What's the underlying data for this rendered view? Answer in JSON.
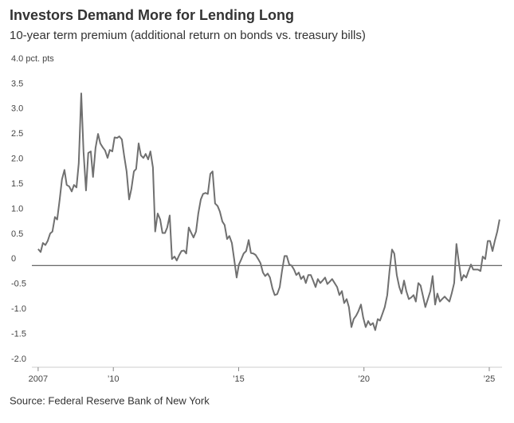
{
  "chart_data": {
    "type": "line",
    "title": "Investors Demand More for Lending Long",
    "subtitle": "10-year term premium (additional return on bonds vs. treasury bills)",
    "source": "Source: Federal Reserve Bank of New York",
    "xlim": [
      2006.75,
      2025.51
    ],
    "xticks": [
      {
        "value": 2007,
        "label": "2007"
      },
      {
        "value": 2010,
        "label": "’10"
      },
      {
        "value": 2015,
        "label": "’15"
      },
      {
        "value": 2020,
        "label": "’20"
      },
      {
        "value": 2025,
        "label": "’25"
      }
    ],
    "ylim": [
      -2,
      4
    ],
    "yticks": [
      {
        "value": 4,
        "label": "4.0 pct. pts"
      },
      3.5,
      {
        "value": 3,
        "label": "3.0"
      },
      2.5,
      {
        "value": 2,
        "label": "2.0"
      },
      1.5,
      {
        "value": 1,
        "label": "1.0"
      },
      0.5,
      0,
      -0.5,
      {
        "value": -1,
        "label": "-1.0"
      },
      -1.5,
      {
        "value": -2,
        "label": "-2.0"
      }
    ],
    "grid": false,
    "series": [
      {
        "name": "10-year term premium",
        "color": "#707070",
        "x": [
          2007,
          2007.1,
          2007.19,
          2007.29,
          2007.38,
          2007.48,
          2007.57,
          2007.67,
          2007.76,
          2007.86,
          2007.95,
          2008.05,
          2008.14,
          2008.24,
          2008.34,
          2008.43,
          2008.53,
          2008.62,
          2008.72,
          2008.81,
          2008.91,
          2009.0,
          2009.1,
          2009.19,
          2009.29,
          2009.39,
          2009.48,
          2009.58,
          2009.67,
          2009.77,
          2009.86,
          2009.96,
          2010.05,
          2010.15,
          2010.24,
          2010.34,
          2010.43,
          2010.53,
          2010.63,
          2010.72,
          2010.82,
          2010.91,
          2011.01,
          2011.1,
          2011.2,
          2011.29,
          2011.39,
          2011.48,
          2011.58,
          2011.67,
          2011.77,
          2011.87,
          2011.96,
          2012.06,
          2012.15,
          2012.25,
          2012.34,
          2012.44,
          2012.53,
          2012.63,
          2012.72,
          2012.82,
          2012.91,
          2013.01,
          2013.11,
          2013.2,
          2013.3,
          2013.39,
          2013.49,
          2013.58,
          2013.68,
          2013.77,
          2013.87,
          2013.96,
          2014.06,
          2014.16,
          2014.25,
          2014.35,
          2014.44,
          2014.54,
          2014.63,
          2014.73,
          2014.82,
          2014.92,
          2015.01,
          2015.11,
          2015.2,
          2015.3,
          2015.4,
          2015.49,
          2015.59,
          2015.68,
          2015.78,
          2015.87,
          2015.97,
          2016.06,
          2016.16,
          2016.25,
          2016.35,
          2016.44,
          2016.54,
          2016.64,
          2016.73,
          2016.83,
          2016.92,
          2017.02,
          2017.11,
          2017.21,
          2017.3,
          2017.4,
          2017.49,
          2017.59,
          2017.68,
          2017.78,
          2017.88,
          2017.97,
          2018.07,
          2018.16,
          2018.26,
          2018.35,
          2018.45,
          2018.54,
          2018.64,
          2018.73,
          2018.83,
          2018.93,
          2019.02,
          2019.12,
          2019.21,
          2019.31,
          2019.4,
          2019.5,
          2019.59,
          2019.69,
          2019.78,
          2019.88,
          2019.97,
          2020.07,
          2020.17,
          2020.26,
          2020.36,
          2020.45,
          2020.55,
          2020.64,
          2020.74,
          2020.83,
          2020.93,
          2021.02,
          2021.12,
          2021.21,
          2021.31,
          2021.41,
          2021.5,
          2021.6,
          2021.69,
          2021.79,
          2021.88,
          2021.98,
          2022.07,
          2022.17,
          2022.26,
          2022.36,
          2022.45,
          2022.55,
          2022.65,
          2022.74,
          2022.84,
          2022.93,
          2023.03,
          2023.12,
          2023.22,
          2023.31,
          2023.41,
          2023.5,
          2023.6,
          2023.69,
          2023.79,
          2023.89,
          2023.98,
          2024.08,
          2024.17,
          2024.27,
          2024.36,
          2024.46,
          2024.55,
          2024.65,
          2024.74,
          2024.84,
          2024.94,
          2025.03,
          2025.13,
          2025.22,
          2025.32,
          2025.41
        ],
        "values": [
          0.33,
          0.27,
          0.45,
          0.41,
          0.49,
          0.64,
          0.68,
          0.97,
          0.92,
          1.32,
          1.72,
          1.91,
          1.61,
          1.58,
          1.48,
          1.61,
          1.56,
          2.04,
          3.44,
          2.28,
          1.5,
          2.25,
          2.28,
          1.77,
          2.35,
          2.63,
          2.44,
          2.36,
          2.3,
          2.15,
          2.31,
          2.28,
          2.56,
          2.55,
          2.58,
          2.52,
          2.2,
          1.88,
          1.32,
          1.53,
          1.88,
          1.93,
          2.44,
          2.2,
          2.15,
          2.23,
          2.12,
          2.28,
          1.96,
          0.68,
          1.04,
          0.92,
          0.65,
          0.65,
          0.76,
          1.0,
          0.13,
          0.18,
          0.1,
          0.21,
          0.29,
          0.3,
          0.24,
          0.76,
          0.65,
          0.56,
          0.68,
          1.04,
          1.32,
          1.43,
          1.45,
          1.43,
          1.83,
          1.88,
          1.24,
          1.19,
          1.08,
          0.88,
          0.81,
          0.53,
          0.59,
          0.45,
          0.13,
          -0.24,
          0.02,
          0.13,
          0.24,
          0.29,
          0.51,
          0.25,
          0.24,
          0.21,
          0.13,
          0.05,
          -0.14,
          -0.21,
          -0.16,
          -0.24,
          -0.46,
          -0.59,
          -0.57,
          -0.43,
          -0.11,
          0.19,
          0.19,
          0.02,
          0,
          -0.08,
          -0.19,
          -0.14,
          -0.27,
          -0.21,
          -0.35,
          -0.19,
          -0.19,
          -0.3,
          -0.43,
          -0.27,
          -0.35,
          -0.3,
          -0.24,
          -0.37,
          -0.32,
          -0.27,
          -0.35,
          -0.43,
          -0.59,
          -0.51,
          -0.75,
          -0.67,
          -0.83,
          -1.23,
          -1.07,
          -1.0,
          -0.91,
          -0.78,
          -1.04,
          -1.23,
          -1.11,
          -1.19,
          -1.15,
          -1.29,
          -1.07,
          -1.1,
          -0.96,
          -0.83,
          -0.59,
          -0.11,
          0.32,
          0.24,
          -0.19,
          -0.43,
          -0.56,
          -0.3,
          -0.51,
          -0.67,
          -0.64,
          -0.59,
          -0.72,
          -0.35,
          -0.4,
          -0.62,
          -0.83,
          -0.67,
          -0.51,
          -0.21,
          -0.78,
          -0.56,
          -0.72,
          -0.67,
          -0.62,
          -0.67,
          -0.72,
          -0.56,
          -0.35,
          0.43,
          0.05,
          -0.3,
          -0.19,
          -0.24,
          -0.11,
          0.02,
          -0.08,
          -0.08,
          -0.08,
          -0.11,
          0.18,
          0.13,
          0.49,
          0.49,
          0.29,
          0.49,
          0.68,
          0.92
        ]
      }
    ]
  }
}
